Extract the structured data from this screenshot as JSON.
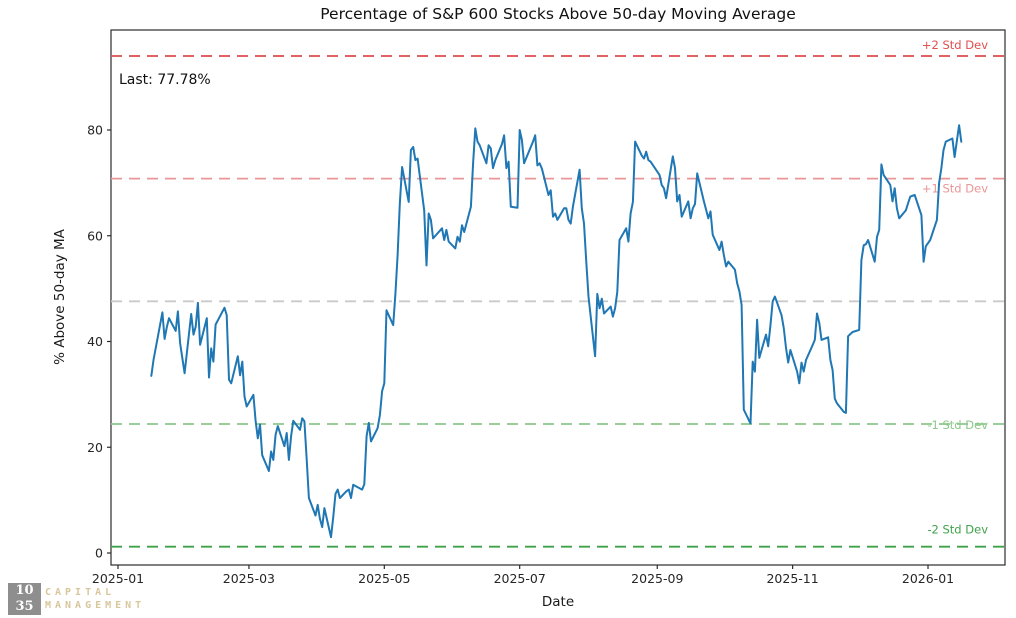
{
  "annotation": {
    "last_label": "Last: 77.78%",
    "last_value": 77.78
  },
  "logo": {
    "mark_line1": "10",
    "mark_line2": "35",
    "name_line1": "CAPITAL",
    "name_line2": "MANAGEMENT",
    "mark_bg_color": "#8e8e8e",
    "name_color": "#d9c79c"
  },
  "chart_data": {
    "type": "line",
    "title": "Percentage of S&P 600 Stocks Above 50-day Moving Average",
    "xlabel": "Date",
    "ylabel": "% Above 50-day MA",
    "line_color": "#1f77b4",
    "ylim": [
      -2.3,
      99.2
    ],
    "yticks": [
      0,
      20,
      40,
      60,
      80
    ],
    "xticks": [
      {
        "date": "2025-01-01",
        "label": "2025-01"
      },
      {
        "date": "2025-03-01",
        "label": "2025-03"
      },
      {
        "date": "2025-05-01",
        "label": "2025-05"
      },
      {
        "date": "2025-07-01",
        "label": "2025-07"
      },
      {
        "date": "2025-09-01",
        "label": "2025-09"
      },
      {
        "date": "2025-11-01",
        "label": "2025-11"
      },
      {
        "date": "2026-01-01",
        "label": "2026-01"
      }
    ],
    "grid": false,
    "legend": "none",
    "reference_lines": [
      {
        "label": "+2 Std Dev",
        "value": 94.0,
        "color": "#dd4c4c",
        "label_color": "#e04f4f",
        "style": "dashed",
        "label_dy": -7
      },
      {
        "label": "+1 Std Dev",
        "value": 70.8,
        "color": "#e99696",
        "label_color": "#e99696",
        "style": "dashed",
        "label_dy": 14
      },
      {
        "label": "",
        "value": 47.6,
        "color": "#c9c9c9",
        "label_color": "#c9c9c9",
        "style": "dashed",
        "label_dy": 0
      },
      {
        "label": "-1 Std Dev",
        "value": 24.4,
        "color": "#8bc88b",
        "label_color": "#8bc88b",
        "style": "dashed",
        "label_dy": 5
      },
      {
        "label": "-2 Std Dev",
        "value": 1.2,
        "color": "#3fa24a",
        "label_color": "#3fa24a",
        "style": "dashed",
        "label_dy": -13
      }
    ],
    "points": [
      [
        "2025-01-16",
        33.5
      ],
      [
        "2025-01-17",
        36.5
      ],
      [
        "2025-01-21",
        45.5
      ],
      [
        "2025-01-22",
        40.5
      ],
      [
        "2025-01-23",
        42.7
      ],
      [
        "2025-01-24",
        44.4
      ],
      [
        "2025-01-27",
        42.0
      ],
      [
        "2025-01-28",
        45.7
      ],
      [
        "2025-01-29",
        39.7
      ],
      [
        "2025-01-31",
        34.0
      ],
      [
        "2025-02-03",
        45.2
      ],
      [
        "2025-02-04",
        41.3
      ],
      [
        "2025-02-05",
        42.8
      ],
      [
        "2025-02-06",
        47.3
      ],
      [
        "2025-02-07",
        39.4
      ],
      [
        "2025-02-10",
        44.4
      ],
      [
        "2025-02-11",
        33.2
      ],
      [
        "2025-02-12",
        38.7
      ],
      [
        "2025-02-13",
        36.2
      ],
      [
        "2025-02-14",
        43.2
      ],
      [
        "2025-02-18",
        46.4
      ],
      [
        "2025-02-19",
        45.0
      ],
      [
        "2025-02-20",
        32.8
      ],
      [
        "2025-02-21",
        32.1
      ],
      [
        "2025-02-24",
        37.2
      ],
      [
        "2025-02-25",
        33.6
      ],
      [
        "2025-02-26",
        36.2
      ],
      [
        "2025-02-27",
        29.6
      ],
      [
        "2025-02-28",
        27.7
      ],
      [
        "2025-03-03",
        29.9
      ],
      [
        "2025-03-04",
        25.0
      ],
      [
        "2025-03-05",
        21.7
      ],
      [
        "2025-03-06",
        24.3
      ],
      [
        "2025-03-07",
        18.5
      ],
      [
        "2025-03-10",
        15.5
      ],
      [
        "2025-03-11",
        19.2
      ],
      [
        "2025-03-12",
        17.6
      ],
      [
        "2025-03-13",
        22.4
      ],
      [
        "2025-03-14",
        24.0
      ],
      [
        "2025-03-17",
        20.2
      ],
      [
        "2025-03-18",
        22.7
      ],
      [
        "2025-03-19",
        17.6
      ],
      [
        "2025-03-20",
        22.1
      ],
      [
        "2025-03-21",
        25.0
      ],
      [
        "2025-03-24",
        23.3
      ],
      [
        "2025-03-25",
        25.5
      ],
      [
        "2025-03-26",
        24.9
      ],
      [
        "2025-03-27",
        18.0
      ],
      [
        "2025-03-28",
        10.4
      ],
      [
        "2025-03-31",
        7.1
      ],
      [
        "2025-04-01",
        9.1
      ],
      [
        "2025-04-02",
        6.5
      ],
      [
        "2025-04-03",
        4.9
      ],
      [
        "2025-04-04",
        8.5
      ],
      [
        "2025-04-07",
        3.0
      ],
      [
        "2025-04-08",
        6.9
      ],
      [
        "2025-04-09",
        11.2
      ],
      [
        "2025-04-10",
        12.0
      ],
      [
        "2025-04-11",
        10.4
      ],
      [
        "2025-04-14",
        11.7
      ],
      [
        "2025-04-15",
        12.0
      ],
      [
        "2025-04-16",
        10.4
      ],
      [
        "2025-04-17",
        12.9
      ],
      [
        "2025-04-21",
        12.0
      ],
      [
        "2025-04-22",
        13.0
      ],
      [
        "2025-04-23",
        22.1
      ],
      [
        "2025-04-24",
        24.6
      ],
      [
        "2025-04-25",
        21.1
      ],
      [
        "2025-04-28",
        23.6
      ],
      [
        "2025-04-29",
        26.1
      ],
      [
        "2025-04-30",
        30.6
      ],
      [
        "2025-05-01",
        32.1
      ],
      [
        "2025-05-02",
        45.9
      ],
      [
        "2025-05-05",
        43.1
      ],
      [
        "2025-05-06",
        49.0
      ],
      [
        "2025-05-07",
        56.3
      ],
      [
        "2025-05-08",
        66.0
      ],
      [
        "2025-05-09",
        73.0
      ],
      [
        "2025-05-12",
        66.4
      ],
      [
        "2025-05-13",
        76.2
      ],
      [
        "2025-05-14",
        76.8
      ],
      [
        "2025-05-15",
        74.3
      ],
      [
        "2025-05-16",
        74.6
      ],
      [
        "2025-05-19",
        64.8
      ],
      [
        "2025-05-20",
        54.4
      ],
      [
        "2025-05-21",
        64.2
      ],
      [
        "2025-05-22",
        63.0
      ],
      [
        "2025-05-23",
        59.5
      ],
      [
        "2025-05-27",
        61.4
      ],
      [
        "2025-05-28",
        59.2
      ],
      [
        "2025-05-29",
        61.1
      ],
      [
        "2025-05-30",
        58.9
      ],
      [
        "2025-06-02",
        57.6
      ],
      [
        "2025-06-03",
        59.8
      ],
      [
        "2025-06-04",
        58.9
      ],
      [
        "2025-06-05",
        62.0
      ],
      [
        "2025-06-06",
        60.7
      ],
      [
        "2025-06-09",
        65.5
      ],
      [
        "2025-06-10",
        73.7
      ],
      [
        "2025-06-11",
        80.3
      ],
      [
        "2025-06-12",
        77.8
      ],
      [
        "2025-06-13",
        77.1
      ],
      [
        "2025-06-16",
        73.7
      ],
      [
        "2025-06-17",
        77.1
      ],
      [
        "2025-06-18",
        76.5
      ],
      [
        "2025-06-19",
        72.8
      ],
      [
        "2025-06-20",
        74.3
      ],
      [
        "2025-06-23",
        77.3
      ],
      [
        "2025-06-24",
        79.0
      ],
      [
        "2025-06-25",
        72.8
      ],
      [
        "2025-06-26",
        74.0
      ],
      [
        "2025-06-27",
        65.5
      ],
      [
        "2025-06-30",
        65.3
      ],
      [
        "2025-07-01",
        80.0
      ],
      [
        "2025-07-02",
        78.1
      ],
      [
        "2025-07-03",
        73.7
      ],
      [
        "2025-07-07",
        77.8
      ],
      [
        "2025-07-08",
        79.0
      ],
      [
        "2025-07-09",
        73.3
      ],
      [
        "2025-07-10",
        73.7
      ],
      [
        "2025-07-11",
        72.7
      ],
      [
        "2025-07-14",
        67.7
      ],
      [
        "2025-07-15",
        68.6
      ],
      [
        "2025-07-16",
        63.6
      ],
      [
        "2025-07-17",
        64.2
      ],
      [
        "2025-07-18",
        63.0
      ],
      [
        "2025-07-21",
        65.2
      ],
      [
        "2025-07-22",
        65.2
      ],
      [
        "2025-07-23",
        63.0
      ],
      [
        "2025-07-24",
        62.3
      ],
      [
        "2025-07-25",
        65.5
      ],
      [
        "2025-07-28",
        72.5
      ],
      [
        "2025-07-29",
        65.2
      ],
      [
        "2025-07-30",
        62.3
      ],
      [
        "2025-07-31",
        55.0
      ],
      [
        "2025-08-01",
        48.5
      ],
      [
        "2025-08-04",
        37.2
      ],
      [
        "2025-08-05",
        49.0
      ],
      [
        "2025-08-06",
        46.3
      ],
      [
        "2025-08-07",
        48.1
      ],
      [
        "2025-08-08",
        45.3
      ],
      [
        "2025-08-11",
        46.6
      ],
      [
        "2025-08-12",
        44.7
      ],
      [
        "2025-08-13",
        46.3
      ],
      [
        "2025-08-14",
        49.4
      ],
      [
        "2025-08-15",
        59.2
      ],
      [
        "2025-08-18",
        61.4
      ],
      [
        "2025-08-19",
        58.9
      ],
      [
        "2025-08-20",
        64.2
      ],
      [
        "2025-08-21",
        66.4
      ],
      [
        "2025-08-22",
        77.8
      ],
      [
        "2025-08-25",
        75.2
      ],
      [
        "2025-08-26",
        74.6
      ],
      [
        "2025-08-27",
        75.9
      ],
      [
        "2025-08-28",
        74.3
      ],
      [
        "2025-08-29",
        74.0
      ],
      [
        "2025-09-02",
        71.5
      ],
      [
        "2025-09-03",
        69.6
      ],
      [
        "2025-09-04",
        69.0
      ],
      [
        "2025-09-05",
        67.1
      ],
      [
        "2025-09-08",
        75.0
      ],
      [
        "2025-09-09",
        72.8
      ],
      [
        "2025-09-10",
        66.5
      ],
      [
        "2025-09-11",
        67.7
      ],
      [
        "2025-09-12",
        63.6
      ],
      [
        "2025-09-15",
        66.5
      ],
      [
        "2025-09-16",
        63.3
      ],
      [
        "2025-09-17",
        65.2
      ],
      [
        "2025-09-18",
        66.0
      ],
      [
        "2025-09-19",
        71.8
      ],
      [
        "2025-09-22",
        66.5
      ],
      [
        "2025-09-23",
        64.9
      ],
      [
        "2025-09-24",
        63.3
      ],
      [
        "2025-09-25",
        64.6
      ],
      [
        "2025-09-26",
        60.2
      ],
      [
        "2025-09-29",
        57.3
      ],
      [
        "2025-09-30",
        58.9
      ],
      [
        "2025-10-01",
        56.4
      ],
      [
        "2025-10-02",
        54.2
      ],
      [
        "2025-10-03",
        55.1
      ],
      [
        "2025-10-06",
        53.6
      ],
      [
        "2025-10-07",
        51.0
      ],
      [
        "2025-10-08",
        49.5
      ],
      [
        "2025-10-09",
        46.9
      ],
      [
        "2025-10-10",
        27.1
      ],
      [
        "2025-10-13",
        24.5
      ],
      [
        "2025-10-14",
        36.2
      ],
      [
        "2025-10-15",
        34.3
      ],
      [
        "2025-10-16",
        44.1
      ],
      [
        "2025-10-17",
        36.9
      ],
      [
        "2025-10-20",
        41.3
      ],
      [
        "2025-10-21",
        39.1
      ],
      [
        "2025-10-22",
        43.0
      ],
      [
        "2025-10-23",
        47.6
      ],
      [
        "2025-10-24",
        48.5
      ],
      [
        "2025-10-27",
        45.0
      ],
      [
        "2025-10-28",
        42.5
      ],
      [
        "2025-10-29",
        38.8
      ],
      [
        "2025-10-30",
        36.0
      ],
      [
        "2025-10-31",
        38.4
      ],
      [
        "2025-11-03",
        34.3
      ],
      [
        "2025-11-04",
        32.1
      ],
      [
        "2025-11-05",
        36.0
      ],
      [
        "2025-11-06",
        34.3
      ],
      [
        "2025-11-07",
        36.5
      ],
      [
        "2025-11-10",
        39.3
      ],
      [
        "2025-11-11",
        40.3
      ],
      [
        "2025-11-12",
        45.3
      ],
      [
        "2025-11-13",
        43.5
      ],
      [
        "2025-11-14",
        40.3
      ],
      [
        "2025-11-17",
        40.8
      ],
      [
        "2025-11-18",
        36.5
      ],
      [
        "2025-11-19",
        34.6
      ],
      [
        "2025-11-20",
        29.2
      ],
      [
        "2025-11-21",
        28.3
      ],
      [
        "2025-11-24",
        26.7
      ],
      [
        "2025-11-25",
        26.5
      ],
      [
        "2025-11-26",
        41.0
      ],
      [
        "2025-11-28",
        41.8
      ],
      [
        "2025-12-01",
        42.2
      ],
      [
        "2025-12-02",
        55.4
      ],
      [
        "2025-12-03",
        58.2
      ],
      [
        "2025-12-04",
        58.4
      ],
      [
        "2025-12-05",
        59.2
      ],
      [
        "2025-12-08",
        55.1
      ],
      [
        "2025-12-09",
        59.8
      ],
      [
        "2025-12-10",
        61.1
      ],
      [
        "2025-12-11",
        73.5
      ],
      [
        "2025-12-12",
        71.5
      ],
      [
        "2025-12-15",
        69.6
      ],
      [
        "2025-12-16",
        66.5
      ],
      [
        "2025-12-17",
        69.0
      ],
      [
        "2025-12-18",
        65.2
      ],
      [
        "2025-12-19",
        63.3
      ],
      [
        "2025-12-22",
        64.8
      ],
      [
        "2025-12-23",
        66.1
      ],
      [
        "2025-12-24",
        67.4
      ],
      [
        "2025-12-26",
        67.7
      ],
      [
        "2025-12-29",
        63.9
      ],
      [
        "2025-12-30",
        55.1
      ],
      [
        "2025-12-31",
        58.0
      ],
      [
        "2026-01-02",
        59.2
      ],
      [
        "2026-01-05",
        63.0
      ],
      [
        "2026-01-06",
        70.0
      ],
      [
        "2026-01-07",
        72.7
      ],
      [
        "2026-01-08",
        76.2
      ],
      [
        "2026-01-09",
        77.8
      ],
      [
        "2026-01-12",
        78.4
      ],
      [
        "2026-01-13",
        74.9
      ],
      [
        "2026-01-14",
        78.0
      ],
      [
        "2026-01-15",
        80.9
      ],
      [
        "2026-01-16",
        77.78
      ]
    ]
  }
}
